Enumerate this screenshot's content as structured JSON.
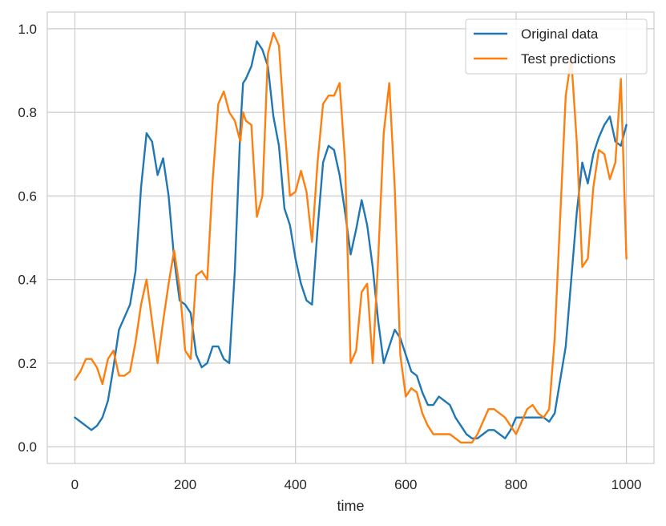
{
  "chart_data": {
    "type": "line",
    "title": "",
    "xlabel": "time",
    "ylabel": "",
    "xlim": [
      -50,
      1050
    ],
    "ylim": [
      -0.04,
      1.04
    ],
    "xticks": [
      0,
      200,
      400,
      600,
      800,
      1000
    ],
    "xtick_labels": [
      "0",
      "200",
      "400",
      "600",
      "800",
      "1000"
    ],
    "yticks": [
      0.0,
      0.2,
      0.4,
      0.6,
      0.8,
      1.0
    ],
    "ytick_labels": [
      "0.0",
      "0.2",
      "0.4",
      "0.6",
      "0.8",
      "1.0"
    ],
    "grid": true,
    "legend_position": "top-right",
    "series": [
      {
        "name": "Original data",
        "color": "#1f77b4",
        "x": [
          0,
          10,
          20,
          30,
          40,
          50,
          60,
          70,
          80,
          90,
          100,
          110,
          120,
          130,
          140,
          150,
          160,
          170,
          180,
          190,
          200,
          210,
          220,
          230,
          240,
          250,
          260,
          270,
          280,
          290,
          300,
          305,
          310,
          320,
          330,
          340,
          350,
          360,
          370,
          380,
          390,
          400,
          410,
          420,
          430,
          440,
          450,
          460,
          470,
          480,
          490,
          500,
          510,
          520,
          530,
          540,
          550,
          560,
          570,
          580,
          590,
          600,
          610,
          620,
          630,
          640,
          650,
          660,
          670,
          680,
          690,
          700,
          710,
          720,
          730,
          740,
          750,
          760,
          770,
          780,
          790,
          800,
          810,
          820,
          830,
          840,
          850,
          860,
          870,
          880,
          890,
          900,
          910,
          920,
          930,
          940,
          950,
          960,
          970,
          980,
          990,
          1000
        ],
        "values": [
          0.07,
          0.06,
          0.05,
          0.04,
          0.05,
          0.07,
          0.11,
          0.19,
          0.28,
          0.31,
          0.34,
          0.42,
          0.62,
          0.75,
          0.73,
          0.65,
          0.69,
          0.6,
          0.45,
          0.35,
          0.34,
          0.32,
          0.22,
          0.19,
          0.2,
          0.24,
          0.24,
          0.21,
          0.2,
          0.42,
          0.76,
          0.87,
          0.88,
          0.91,
          0.97,
          0.95,
          0.91,
          0.79,
          0.72,
          0.57,
          0.53,
          0.45,
          0.39,
          0.35,
          0.34,
          0.52,
          0.68,
          0.72,
          0.71,
          0.65,
          0.56,
          0.46,
          0.52,
          0.59,
          0.53,
          0.43,
          0.3,
          0.2,
          0.24,
          0.28,
          0.26,
          0.22,
          0.18,
          0.17,
          0.13,
          0.1,
          0.1,
          0.12,
          0.11,
          0.1,
          0.07,
          0.05,
          0.03,
          0.02,
          0.02,
          0.03,
          0.04,
          0.04,
          0.03,
          0.02,
          0.04,
          0.07,
          0.07,
          0.07,
          0.07,
          0.07,
          0.07,
          0.06,
          0.08,
          0.16,
          0.24,
          0.4,
          0.56,
          0.68,
          0.63,
          0.7,
          0.74,
          0.77,
          0.79,
          0.73,
          0.72,
          0.77
        ]
      },
      {
        "name": "Test predictions",
        "color": "#ff7f0e",
        "x": [
          0,
          10,
          20,
          30,
          40,
          50,
          60,
          70,
          80,
          90,
          100,
          110,
          120,
          130,
          140,
          150,
          160,
          170,
          180,
          190,
          200,
          210,
          220,
          230,
          240,
          250,
          260,
          270,
          280,
          290,
          300,
          305,
          310,
          320,
          330,
          340,
          350,
          360,
          370,
          380,
          390,
          400,
          410,
          420,
          430,
          440,
          450,
          460,
          470,
          480,
          490,
          500,
          510,
          520,
          530,
          540,
          550,
          560,
          570,
          580,
          590,
          600,
          610,
          620,
          630,
          640,
          650,
          660,
          670,
          680,
          690,
          700,
          710,
          720,
          730,
          740,
          750,
          760,
          770,
          780,
          790,
          800,
          810,
          820,
          830,
          840,
          850,
          860,
          870,
          880,
          890,
          900,
          910,
          920,
          930,
          940,
          950,
          960,
          970,
          980,
          990,
          1000
        ],
        "values": [
          0.16,
          0.18,
          0.21,
          0.21,
          0.19,
          0.15,
          0.21,
          0.23,
          0.17,
          0.17,
          0.18,
          0.25,
          0.34,
          0.4,
          0.3,
          0.2,
          0.3,
          0.39,
          0.47,
          0.38,
          0.23,
          0.21,
          0.41,
          0.42,
          0.4,
          0.64,
          0.82,
          0.85,
          0.8,
          0.78,
          0.73,
          0.8,
          0.78,
          0.77,
          0.55,
          0.6,
          0.94,
          0.99,
          0.96,
          0.77,
          0.6,
          0.61,
          0.66,
          0.61,
          0.49,
          0.68,
          0.82,
          0.84,
          0.84,
          0.87,
          0.68,
          0.2,
          0.23,
          0.37,
          0.39,
          0.2,
          0.45,
          0.75,
          0.87,
          0.62,
          0.22,
          0.12,
          0.14,
          0.13,
          0.08,
          0.05,
          0.03,
          0.03,
          0.03,
          0.03,
          0.02,
          0.01,
          0.01,
          0.01,
          0.03,
          0.06,
          0.09,
          0.09,
          0.08,
          0.07,
          0.05,
          0.03,
          0.06,
          0.09,
          0.1,
          0.08,
          0.07,
          0.09,
          0.26,
          0.55,
          0.84,
          0.93,
          0.73,
          0.43,
          0.45,
          0.62,
          0.71,
          0.7,
          0.64,
          0.68,
          0.88,
          0.45
        ]
      }
    ]
  }
}
